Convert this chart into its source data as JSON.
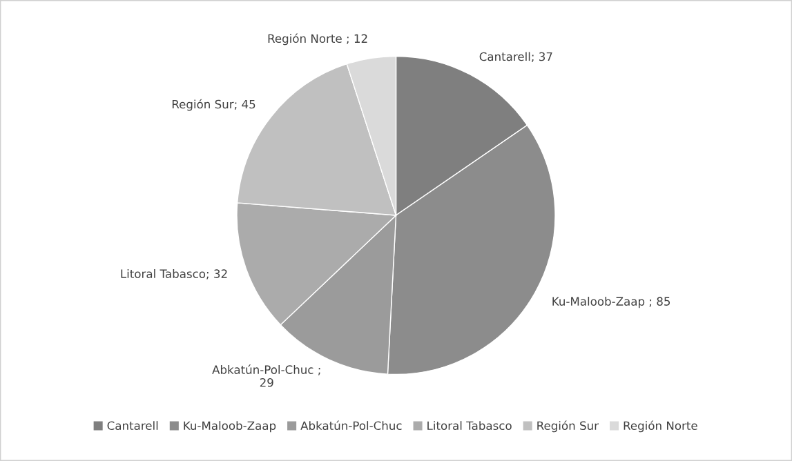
{
  "chart_data": {
    "type": "pie",
    "categories": [
      "Cantarell",
      "Ku-Maloob-Zaap",
      "Abkatún-Pol-Chuc",
      "Litoral Tabasco",
      "Región Sur",
      "Región Norte"
    ],
    "values": [
      37,
      85,
      29,
      32,
      45,
      12
    ],
    "colors": [
      "#7f7f7f",
      "#8c8c8c",
      "#9b9b9b",
      "#ababab",
      "#c0c0c0",
      "#dadada"
    ],
    "value_labels": [
      "Cantarell; 37",
      "Ku-Maloob-Zaap ; 85",
      "Abkatún-Pol-Chuc ;\n29",
      "Litoral Tabasco; 32",
      "Región Sur; 45",
      "Región Norte ; 12"
    ],
    "legend": "bottom"
  }
}
